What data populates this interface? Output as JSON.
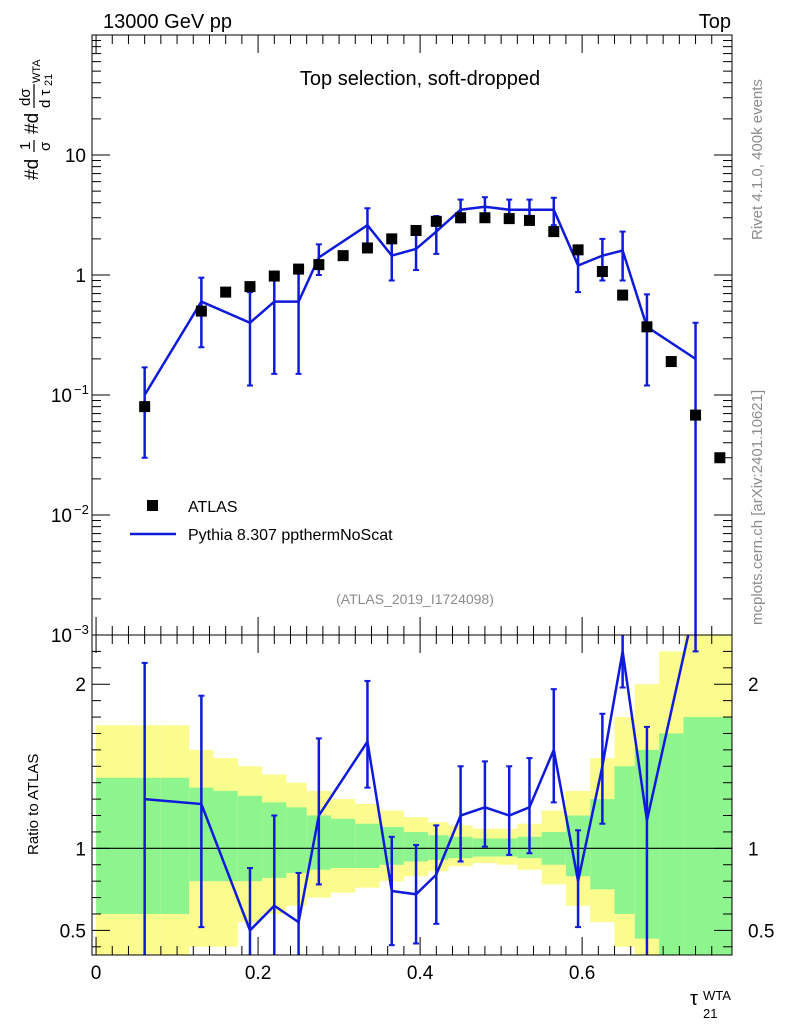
{
  "header": {
    "energy_label": "13000 GeV pp",
    "process_label": "Top"
  },
  "side_labels": {
    "rivet": "Rivet 4.1.0,  400k events",
    "source": "mcplots.cern.ch [arXiv:2401.10621]"
  },
  "chart_data": {
    "type": "line",
    "title": "Top selection, soft-dropped",
    "analysis_id": "(ATLAS_2019_I1724098)",
    "xlabel_main": "τ",
    "xlabel_sup": "WTA",
    "xlabel_sub": "21",
    "ylabel": "#d 1/σ #d dσ/d τ21 WTA",
    "ylabel_parts": [
      "#d",
      "1",
      "σ",
      "#d",
      "dσ",
      "d τ",
      "WTA",
      "21"
    ],
    "ratio_ylabel": "Ratio to ATLAS",
    "xlim": [
      -0.005,
      0.785
    ],
    "ylim": [
      0.001,
      100
    ],
    "yscale": "log",
    "ratio_ylim": [
      0.35,
      2.3
    ],
    "x_ticks": [
      {
        "value": 0,
        "label": "0"
      },
      {
        "value": 0.2,
        "label": "0.2"
      },
      {
        "value": 0.4,
        "label": "0.4"
      },
      {
        "value": 0.6,
        "label": "0.6"
      }
    ],
    "y_ticks": [
      {
        "value": 10,
        "base": "10",
        "exp": ""
      },
      {
        "value": 1,
        "base": "1",
        "exp": ""
      },
      {
        "value": 0.1,
        "base": "10",
        "exp": "−1"
      },
      {
        "value": 0.01,
        "base": "10",
        "exp": "−2"
      },
      {
        "value": 0.001,
        "base": "10",
        "exp": "−3"
      }
    ],
    "ratio_ticks": [
      {
        "value": 0.5,
        "label": "0.5"
      },
      {
        "value": 1,
        "label": "1"
      },
      {
        "value": 2,
        "label": "2"
      }
    ],
    "legend": [
      {
        "name": "ATLAS",
        "style": "marker"
      },
      {
        "name": "Pythia 8.307 ppthermNoScat",
        "style": "line"
      }
    ],
    "data_series": {
      "name": "ATLAS",
      "x": [
        0.06,
        0.13,
        0.16,
        0.19,
        0.22,
        0.25,
        0.275,
        0.305,
        0.335,
        0.365,
        0.395,
        0.42,
        0.45,
        0.48,
        0.51,
        0.535,
        0.565,
        0.595,
        0.625,
        0.65,
        0.68,
        0.71,
        0.74,
        0.77
      ],
      "y": [
        0.08,
        0.5,
        0.72,
        0.8,
        0.98,
        1.12,
        1.22,
        1.45,
        1.68,
        2.0,
        2.35,
        2.8,
        3.0,
        3.0,
        2.95,
        2.85,
        2.3,
        1.62,
        1.07,
        0.68,
        0.37,
        0.19,
        0.068,
        0.03
      ]
    },
    "mc_series": {
      "name": "Pythia 8.307 ppthermNoScat",
      "color": "#0f1adb",
      "x": [
        0.06,
        0.13,
        0.19,
        0.22,
        0.25,
        0.275,
        0.335,
        0.365,
        0.395,
        0.42,
        0.45,
        0.48,
        0.51,
        0.535,
        0.565,
        0.595,
        0.625,
        0.65,
        0.68,
        0.74
      ],
      "y": [
        0.1,
        0.6,
        0.4,
        0.6,
        0.6,
        1.4,
        2.6,
        1.45,
        1.65,
        2.3,
        3.5,
        3.7,
        3.5,
        3.5,
        3.5,
        1.2,
        1.45,
        1.6,
        0.37,
        0.2
      ],
      "err_low": [
        0.07,
        0.35,
        0.28,
        0.45,
        0.45,
        0.4,
        1.0,
        0.55,
        0.55,
        0.8,
        0.75,
        0.75,
        0.75,
        0.75,
        0.9,
        0.48,
        0.55,
        0.7,
        0.25,
        0.2
      ],
      "err_high": [
        0.07,
        0.35,
        0.32,
        0.45,
        0.45,
        0.4,
        1.0,
        0.55,
        0.55,
        0.8,
        0.75,
        0.75,
        0.75,
        0.75,
        0.9,
        0.48,
        0.55,
        0.7,
        0.32,
        0.2
      ],
      "ratio": [
        1.3,
        1.27,
        0.5,
        0.65,
        0.55,
        1.2,
        1.65,
        0.74,
        0.72,
        0.84,
        1.2,
        1.25,
        1.2,
        1.25,
        1.6,
        0.8,
        1.5,
        2.2,
        1.17,
        2.5
      ],
      "ratio_err_low": [
        1.0,
        0.75,
        0.38,
        0.6,
        0.3,
        0.42,
        0.28,
        0.33,
        0.3,
        0.3,
        0.28,
        0.24,
        0.24,
        0.28,
        0.32,
        0.28,
        0.35,
        0.22,
        0.9,
        0.3
      ],
      "ratio_err_high": [
        0.83,
        0.66,
        0.38,
        0.55,
        0.3,
        0.47,
        0.37,
        0.33,
        0.3,
        0.3,
        0.3,
        0.28,
        0.3,
        0.3,
        0.37,
        0.31,
        0.32,
        0.27,
        0.57,
        0.3
      ]
    },
    "uncertainty_bands": {
      "edges": [
        0.0,
        0.04,
        0.08,
        0.115,
        0.145,
        0.175,
        0.205,
        0.235,
        0.26,
        0.29,
        0.32,
        0.35,
        0.38,
        0.41,
        0.435,
        0.465,
        0.495,
        0.52,
        0.55,
        0.58,
        0.61,
        0.64,
        0.665,
        0.695,
        0.725,
        0.785
      ],
      "inner_low": [
        0.6,
        0.6,
        0.6,
        0.8,
        0.8,
        0.8,
        0.82,
        0.85,
        0.87,
        0.88,
        0.88,
        0.9,
        0.92,
        0.93,
        0.94,
        0.95,
        0.95,
        0.94,
        0.9,
        0.83,
        0.75,
        0.6,
        0.45,
        0.35,
        0.3
      ],
      "inner_high": [
        1.43,
        1.43,
        1.43,
        1.37,
        1.35,
        1.32,
        1.28,
        1.25,
        1.2,
        1.18,
        1.15,
        1.13,
        1.1,
        1.08,
        1.07,
        1.06,
        1.06,
        1.07,
        1.1,
        1.2,
        1.3,
        1.5,
        1.6,
        1.7,
        1.8
      ],
      "outer_low": [
        0.3,
        0.3,
        0.3,
        0.4,
        0.4,
        0.55,
        0.6,
        0.65,
        0.7,
        0.73,
        0.76,
        0.8,
        0.83,
        0.86,
        0.89,
        0.91,
        0.9,
        0.87,
        0.78,
        0.65,
        0.55,
        0.4,
        0.35,
        0.35,
        0.35
      ],
      "outer_high": [
        1.75,
        1.75,
        1.75,
        1.6,
        1.55,
        1.5,
        1.45,
        1.4,
        1.35,
        1.3,
        1.27,
        1.23,
        1.19,
        1.16,
        1.14,
        1.12,
        1.12,
        1.15,
        1.23,
        1.35,
        1.55,
        1.8,
        2.0,
        2.2,
        2.3
      ],
      "inner_color": "#8ef58e",
      "outer_color": "#fcfc8e"
    }
  }
}
